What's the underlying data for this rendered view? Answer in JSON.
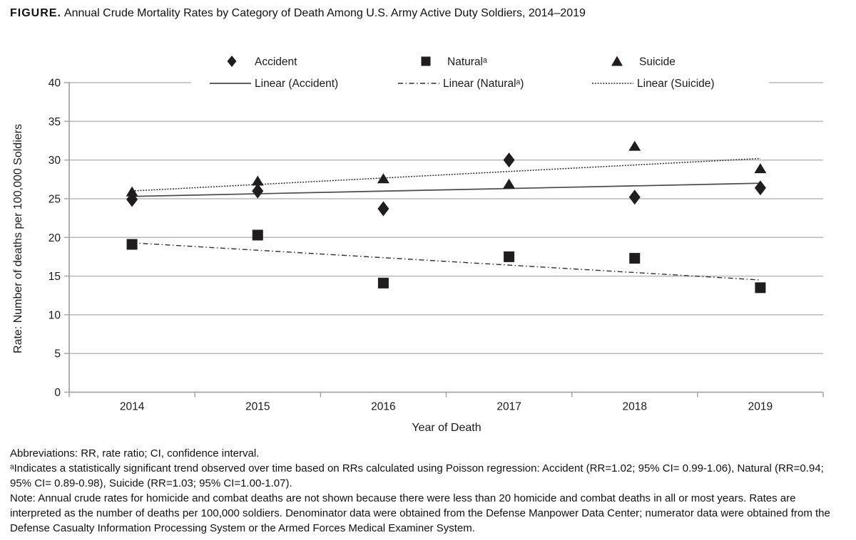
{
  "figure": {
    "label": "FIGURE."
  },
  "chart_data": {
    "type": "scatter",
    "title": "Annual Crude Mortality Rates by Category of Death Among U.S. Army Active Duty Soldiers, 2014–2019",
    "x": [
      "2014",
      "2015",
      "2016",
      "2017",
      "2018",
      "2019"
    ],
    "series": [
      {
        "name": "Accident",
        "marker": "diamond",
        "values": [
          24.9,
          26.0,
          23.7,
          30.0,
          25.2,
          26.4
        ],
        "trend": {
          "label": "Linear (Accident)",
          "style": "solid",
          "endpoints": [
            25.3,
            27.0
          ]
        }
      },
      {
        "name": "Naturalᵃ",
        "marker": "square",
        "values": [
          19.1,
          20.3,
          14.1,
          17.5,
          17.3,
          13.5
        ],
        "trend": {
          "label": "Linear (Naturalᵃ)",
          "style": "dashdot",
          "endpoints": [
            19.3,
            14.5
          ]
        }
      },
      {
        "name": "Suicide",
        "marker": "triangle",
        "values": [
          25.9,
          27.3,
          27.6,
          26.9,
          31.8,
          28.9
        ],
        "trend": {
          "label": "Linear (Suicide)",
          "style": "dotted",
          "endpoints": [
            26.0,
            30.2
          ]
        }
      }
    ],
    "xlabel": "Year of Death",
    "ylabel": "Rate: Number of deaths per 100,000 Soldiers",
    "ylim": [
      0,
      40
    ],
    "yticks": [
      0,
      5,
      10,
      15,
      20,
      25,
      30,
      35,
      40
    ],
    "grid": true,
    "legend_position": "top"
  },
  "colors": {
    "marker": "#211d1e",
    "trend_solid": "#4a4a4a",
    "trend_dash": "#2e2e2e",
    "gridline": "#b8b8b8",
    "axis": "#a6a6a6",
    "text": "#1a1a1a"
  },
  "footnotes": {
    "abbreviations": "Abbreviations: RR, rate ratio; CI, confidence interval.",
    "significance": "ᵃIndicates a statistically significant trend observed over time based on RRs calculated using Poisson regression: Accident (RR=1.02; 95% CI= 0.99-1.06), Natural (RR=0.94; 95% CI= 0.89-0.98), Suicide (RR=1.03; 95% CI=1.00-1.07).",
    "note": "Note: Annual crude rates for homicide and combat deaths are not shown because there were less than 20 homicide and combat deaths in all or most years. Rates are interpreted as the number of deaths per 100,000 soldiers. Denominator data were obtained from the Defense Manpower Data Center; numerator data were obtained from the Defense Casualty Information Processing System or the Armed Forces Medical Examiner System."
  }
}
